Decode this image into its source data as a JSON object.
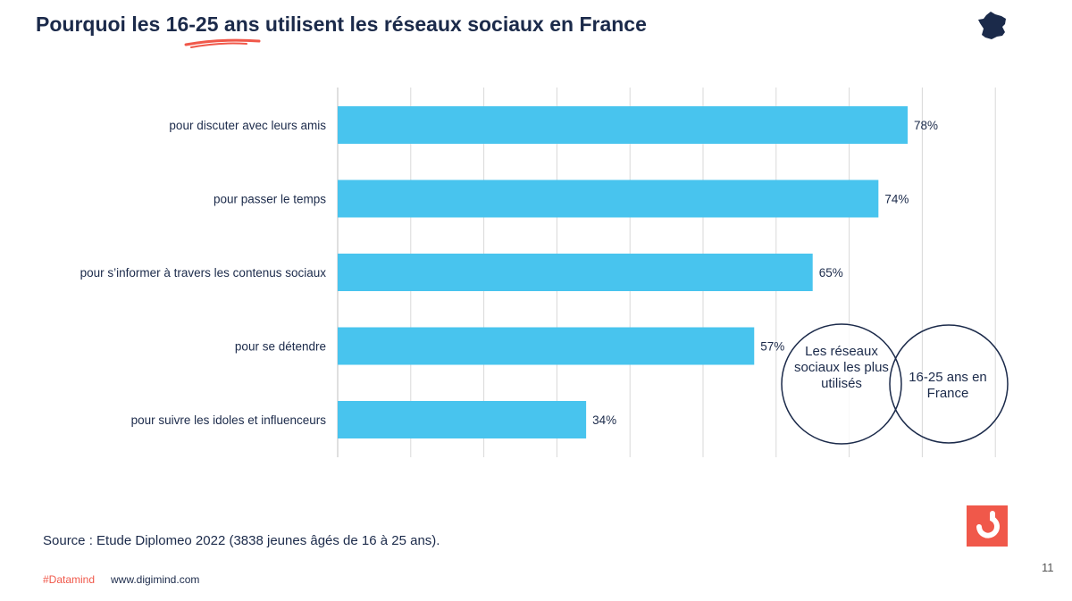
{
  "header": {
    "title": "Pourquoi les 16-25 ans utilisent les réseaux sociaux en France",
    "accent_color": "#f0584a",
    "map_icon": "france-map-icon"
  },
  "chart_data": {
    "type": "bar",
    "orientation": "horizontal",
    "categories": [
      "pour discuter avec leurs amis",
      "pour passer le temps",
      "pour s’informer à travers les contenus sociaux",
      "pour se détendre",
      "pour suivre les idoles et influenceurs"
    ],
    "values": [
      78,
      74,
      65,
      57,
      34
    ],
    "value_labels": [
      "78%",
      "74%",
      "65%",
      "57%",
      "34%"
    ],
    "xlim": [
      0,
      90
    ],
    "grid": true,
    "bar_color": "#48c4ee"
  },
  "venn": {
    "left_label": "Les réseaux sociaux les plus utilisés",
    "right_label": "16-25 ans en France"
  },
  "footer": {
    "source": "Source : Etude Diplomeo 2022 (3838 jeunes âgés de 16 à 25 ans).",
    "tag": "#Datamind",
    "url": "www.digimind.com",
    "page_number": "11",
    "logo_icon": "digimind-logo-icon"
  }
}
